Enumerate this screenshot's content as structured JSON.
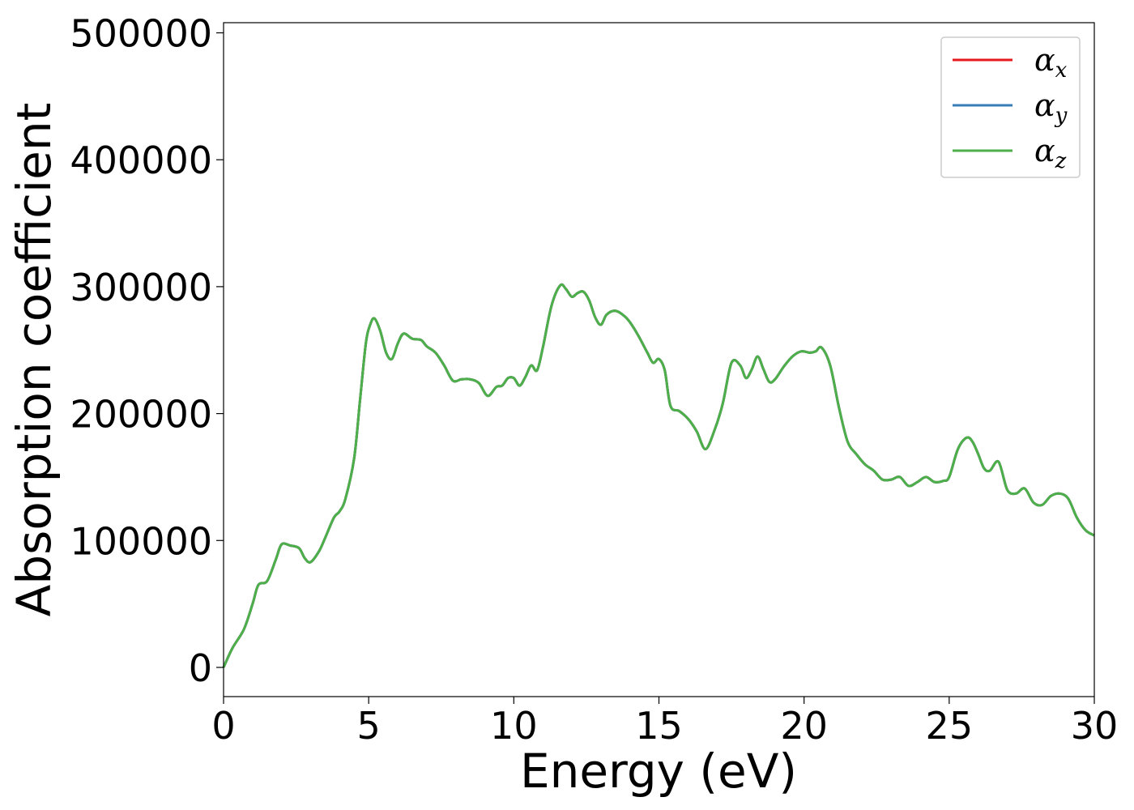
{
  "chart_data": {
    "type": "line",
    "title": "",
    "xlabel": "Energy (eV)",
    "ylabel": "Absorption coefficient",
    "xlim": [
      0,
      30
    ],
    "ylim": [
      -23000,
      508000
    ],
    "x_ticks": [
      "0",
      "5",
      "10",
      "15",
      "20",
      "25",
      "30"
    ],
    "x_tick_values": [
      0,
      5,
      10,
      15,
      20,
      25,
      30
    ],
    "y_ticks": [
      "0",
      "100000",
      "200000",
      "300000",
      "400000",
      "500000"
    ],
    "y_tick_values": [
      0,
      100000,
      200000,
      300000,
      400000,
      500000
    ],
    "grid": false,
    "legend_position": "top-right",
    "x": [
      0,
      0.3,
      0.7,
      1.0,
      1.2,
      1.5,
      1.8,
      2.0,
      2.3,
      2.6,
      2.8,
      3.0,
      3.3,
      3.5,
      3.8,
      4.0,
      4.2,
      4.5,
      4.7,
      4.9,
      5.05,
      5.2,
      5.4,
      5.6,
      5.8,
      6.0,
      6.2,
      6.5,
      6.8,
      7.0,
      7.3,
      7.6,
      7.9,
      8.2,
      8.5,
      8.8,
      9.1,
      9.4,
      9.6,
      9.8,
      10.0,
      10.2,
      10.4,
      10.6,
      10.8,
      11.0,
      11.3,
      11.6,
      11.8,
      12.0,
      12.2,
      12.4,
      12.6,
      12.8,
      13.0,
      13.2,
      13.5,
      13.8,
      14.0,
      14.3,
      14.6,
      14.8,
      15.0,
      15.2,
      15.4,
      15.7,
      16.0,
      16.3,
      16.6,
      16.9,
      17.2,
      17.5,
      17.8,
      18.0,
      18.2,
      18.4,
      18.6,
      18.8,
      19.0,
      19.3,
      19.6,
      19.9,
      20.2,
      20.4,
      20.6,
      20.9,
      21.2,
      21.5,
      21.8,
      22.1,
      22.4,
      22.7,
      23.0,
      23.3,
      23.6,
      23.9,
      24.2,
      24.5,
      24.8,
      25.0,
      25.3,
      25.6,
      25.8,
      26.0,
      26.2,
      26.4,
      26.7,
      27.0,
      27.3,
      27.6,
      27.9,
      28.2,
      28.5,
      28.8,
      29.1,
      29.4,
      29.7,
      30.0
    ],
    "series": [
      {
        "name": "α_x",
        "color": "#e41a1c",
        "y": [
          0,
          15000,
          30000,
          50000,
          65000,
          68000,
          85000,
          97000,
          96000,
          94000,
          86000,
          83000,
          92000,
          102000,
          118000,
          123000,
          133000,
          165000,
          210000,
          255000,
          270000,
          275000,
          265000,
          248000,
          243000,
          255000,
          263000,
          259000,
          258000,
          253000,
          248000,
          238000,
          226000,
          227000,
          227000,
          224000,
          214000,
          221000,
          222000,
          228000,
          228000,
          222000,
          229000,
          238000,
          234000,
          252000,
          285000,
          301000,
          298000,
          292000,
          295000,
          296000,
          289000,
          276000,
          270000,
          278000,
          281000,
          277000,
          272000,
          261000,
          248000,
          240000,
          243000,
          234000,
          206000,
          202000,
          196000,
          186000,
          172000,
          186000,
          208000,
          240000,
          238000,
          228000,
          235000,
          245000,
          235000,
          225000,
          227000,
          237000,
          245000,
          249000,
          248000,
          249000,
          252000,
          238000,
          205000,
          178000,
          168000,
          160000,
          155000,
          148000,
          148000,
          150000,
          143000,
          146000,
          150000,
          146000,
          147000,
          150000,
          172000,
          181000,
          178000,
          168000,
          157000,
          155000,
          162000,
          140000,
          137000,
          141000,
          130000,
          128000,
          135000,
          137000,
          133000,
          118000,
          108000,
          104000
        ]
      },
      {
        "name": "α_y",
        "color": "#377eb8",
        "y": [
          0,
          15000,
          30000,
          50000,
          65000,
          68000,
          85000,
          97000,
          96000,
          94000,
          86000,
          83000,
          92000,
          102000,
          118000,
          123000,
          133000,
          165000,
          210000,
          255000,
          270000,
          275000,
          265000,
          248000,
          243000,
          255000,
          263000,
          259000,
          258000,
          253000,
          248000,
          238000,
          226000,
          227000,
          227000,
          224000,
          214000,
          221000,
          222000,
          228000,
          228000,
          222000,
          229000,
          238000,
          234000,
          252000,
          285000,
          301000,
          298000,
          292000,
          295000,
          296000,
          289000,
          276000,
          270000,
          278000,
          281000,
          277000,
          272000,
          261000,
          248000,
          240000,
          243000,
          234000,
          206000,
          202000,
          196000,
          186000,
          172000,
          186000,
          208000,
          240000,
          238000,
          228000,
          235000,
          245000,
          235000,
          225000,
          227000,
          237000,
          245000,
          249000,
          248000,
          249000,
          252000,
          238000,
          205000,
          178000,
          168000,
          160000,
          155000,
          148000,
          148000,
          150000,
          143000,
          146000,
          150000,
          146000,
          147000,
          150000,
          172000,
          181000,
          178000,
          168000,
          157000,
          155000,
          162000,
          140000,
          137000,
          141000,
          130000,
          128000,
          135000,
          137000,
          133000,
          118000,
          108000,
          104000
        ]
      },
      {
        "name": "α_z",
        "color": "#4daf4a",
        "y": [
          0,
          15000,
          30000,
          50000,
          65000,
          68000,
          85000,
          97000,
          96000,
          94000,
          86000,
          83000,
          92000,
          102000,
          118000,
          123000,
          133000,
          165000,
          210000,
          255000,
          270000,
          275000,
          265000,
          248000,
          243000,
          255000,
          263000,
          259000,
          258000,
          253000,
          248000,
          238000,
          226000,
          227000,
          227000,
          224000,
          214000,
          221000,
          222000,
          228000,
          228000,
          222000,
          229000,
          238000,
          234000,
          252000,
          285000,
          301000,
          298000,
          292000,
          295000,
          296000,
          289000,
          276000,
          270000,
          278000,
          281000,
          277000,
          272000,
          261000,
          248000,
          240000,
          243000,
          234000,
          206000,
          202000,
          196000,
          186000,
          172000,
          186000,
          208000,
          240000,
          238000,
          228000,
          235000,
          245000,
          235000,
          225000,
          227000,
          237000,
          245000,
          249000,
          248000,
          249000,
          252000,
          238000,
          205000,
          178000,
          168000,
          160000,
          155000,
          148000,
          148000,
          150000,
          143000,
          146000,
          150000,
          146000,
          147000,
          150000,
          172000,
          181000,
          178000,
          168000,
          157000,
          155000,
          162000,
          140000,
          137000,
          141000,
          130000,
          128000,
          135000,
          137000,
          133000,
          118000,
          108000,
          104000
        ]
      }
    ],
    "legend": [
      {
        "symbol": "α",
        "sub": "x"
      },
      {
        "symbol": "α",
        "sub": "y"
      },
      {
        "symbol": "α",
        "sub": "z"
      }
    ]
  }
}
